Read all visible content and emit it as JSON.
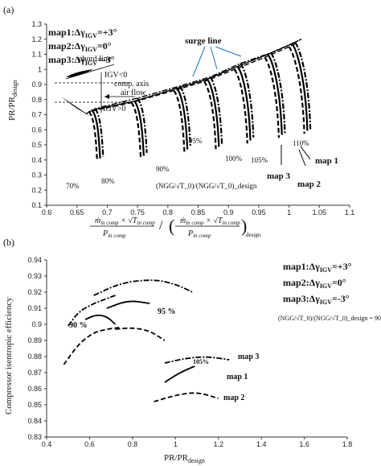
{
  "figure": {
    "panel_a_label": "(a)",
    "panel_b_label": "(b)"
  },
  "chart_data": [
    {
      "type": "line",
      "panel": "(a)",
      "xlim": [
        0.6,
        1.1
      ],
      "ylim": [
        0.1,
        1.3
      ],
      "x_ticks": [
        "0.6",
        "0.65",
        "0.7",
        "0.75",
        "0.8",
        "0.85",
        "0.9",
        "0.95",
        "1",
        "1.05",
        "1.1"
      ],
      "y_ticks": [
        "0.1",
        "0.2",
        "0.3",
        "0.4",
        "0.5",
        "0.6",
        "0.7",
        "0.8",
        "0.9",
        "1",
        "1.1",
        "1.2",
        "1.3"
      ],
      "ylabel": "PR/PR",
      "ylabel_sub": "design",
      "xlabel": "ṁ_in comp × √T_in comp / P_in comp  /  ( ṁ_in comp × √T_in comp / P_in comp )_design",
      "legend": [
        {
          "name": "map1",
          "text": "map1:Δγ",
          "sub": "IGV",
          "value": "=+3°",
          "dash": "dashdot"
        },
        {
          "name": "map2",
          "text": "map2:Δγ",
          "sub": "IGV",
          "value": "=0°",
          "dash": "solid"
        },
        {
          "name": "map3",
          "text": "map3:Δγ",
          "sub": "IGV",
          "value": "=-3°",
          "dash": "dash"
        }
      ],
      "annotations": {
        "surge_line": "surge line",
        "chord_line": "chord line",
        "igv_neg": "IGV<0",
        "igv_pos": "IGV>0",
        "comp_axis": "comp. axis",
        "air_flow": "air flow",
        "speed_param": "(NGG/√T_0)/(NGG/√T_0)_design"
      },
      "speed_labels": [
        "70%",
        "80%",
        "90%",
        "95%",
        "100%",
        "105%",
        "110%"
      ],
      "map_labels": [
        "map 1",
        "map 2",
        "map 3"
      ],
      "series": [
        {
          "name": "map1",
          "dash": "dashdot",
          "surge": [
            [
              0.68,
              0.74
            ],
            [
              0.75,
              0.81
            ],
            [
              0.82,
              0.89
            ],
            [
              0.87,
              0.95
            ],
            [
              0.92,
              1.04
            ],
            [
              0.97,
              1.11
            ],
            [
              1.01,
              1.18
            ]
          ]
        },
        {
          "name": "map2",
          "dash": "solid",
          "surge": [
            [
              0.675,
              0.73
            ],
            [
              0.745,
              0.79
            ],
            [
              0.815,
              0.875
            ],
            [
              0.865,
              0.935
            ],
            [
              0.915,
              1.02
            ],
            [
              0.965,
              1.1
            ],
            [
              1.005,
              1.17
            ]
          ]
        },
        {
          "name": "map3",
          "dash": "dash",
          "surge": [
            [
              0.67,
              0.72
            ],
            [
              0.74,
              0.78
            ],
            [
              0.81,
              0.86
            ],
            [
              0.86,
              0.92
            ],
            [
              0.91,
              1.0
            ],
            [
              0.96,
              1.08
            ],
            [
              1.0,
              1.15
            ]
          ]
        }
      ]
    },
    {
      "type": "line",
      "panel": "(b)",
      "xlim": [
        0.4,
        1.8
      ],
      "ylim": [
        0.83,
        0.94
      ],
      "x_ticks": [
        "0.4",
        "0.6",
        "0.8",
        "1",
        "1.2",
        "1.4",
        "1.6",
        "1.8"
      ],
      "y_ticks": [
        "0.83",
        "0.84",
        "0.85",
        "0.86",
        "0.87",
        "0.88",
        "0.89",
        "0.9",
        "0.91",
        "0.92",
        "0.93",
        "0.94"
      ],
      "xlabel": "PR/PR",
      "xlabel_sub": "design",
      "ylabel": "Compressor isentropic efficiency",
      "legend": [
        {
          "name": "map1",
          "text": "map1:Δγ",
          "sub": "IGV",
          "value": "=+3°"
        },
        {
          "name": "map2",
          "text": "map2:Δγ",
          "sub": "IGV",
          "value": "=0°"
        },
        {
          "name": "map3",
          "text": "map3:Δγ",
          "sub": "IGV",
          "value": "=-3°"
        }
      ],
      "speed_note": "(NGG/√T_0)/(NGG/√T_0)_design = 90%, 95 %, 105%",
      "annotations": [
        "90 %",
        "95 %",
        "105%",
        "map 3",
        "map 1",
        "map 2"
      ],
      "series": [
        {
          "name": "map1 90%",
          "dash": "dashdot",
          "x": [
            0.5,
            0.55,
            0.62,
            0.68,
            0.72
          ],
          "y": [
            0.899,
            0.908,
            0.913,
            0.916,
            0.918
          ]
        },
        {
          "name": "map1 95%",
          "dash": "dashdot",
          "x": [
            0.62,
            0.75,
            0.9,
            1.0,
            1.08
          ],
          "y": [
            0.918,
            0.926,
            0.928,
            0.925,
            0.92
          ]
        },
        {
          "name": "map1 105%",
          "dash": "dashdot",
          "x": [
            0.95,
            1.05,
            1.15,
            1.25
          ],
          "y": [
            0.876,
            0.879,
            0.88,
            0.878
          ]
        },
        {
          "name": "map2 90%",
          "dash": "solid",
          "x": [
            0.58,
            0.63,
            0.68,
            0.72
          ],
          "y": [
            0.903,
            0.906,
            0.905,
            0.9
          ]
        },
        {
          "name": "map2 95%",
          "dash": "solid",
          "x": [
            0.68,
            0.78,
            0.88
          ],
          "y": [
            0.91,
            0.915,
            0.913
          ]
        },
        {
          "name": "map2 105%",
          "dash": "solid",
          "x": [
            0.95,
            1.02,
            1.09
          ],
          "y": [
            0.864,
            0.87,
            0.874
          ]
        },
        {
          "name": "map3 90%",
          "dash": "dash",
          "x": [
            0.48,
            0.55,
            0.62,
            0.68,
            0.74
          ],
          "y": [
            0.875,
            0.888,
            0.895,
            0.897,
            0.898
          ]
        },
        {
          "name": "map3 95%",
          "dash": "dash",
          "x": [
            0.72,
            0.8,
            0.88,
            0.95
          ],
          "y": [
            0.897,
            0.898,
            0.896,
            0.89
          ]
        },
        {
          "name": "map3 105%",
          "dash": "dash",
          "x": [
            0.9,
            1.0,
            1.1,
            1.2
          ],
          "y": [
            0.852,
            0.856,
            0.858,
            0.854
          ]
        }
      ]
    }
  ]
}
